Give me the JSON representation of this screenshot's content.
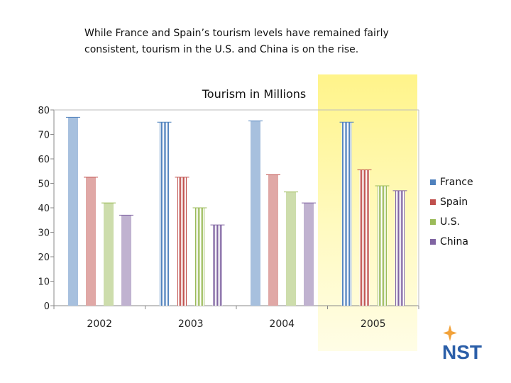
{
  "caption": "While France and Spain’s tourism levels have remained fairly consistent, tourism in the U.S. and China is on the rise.",
  "logo": {
    "text": "NST",
    "icon": "compass-star-icon",
    "color": "#2a5ea8",
    "accent": "#f2a23a"
  },
  "chart_data": {
    "type": "bar",
    "title": "Tourism in Millions",
    "xlabel": "",
    "ylabel": "",
    "categories": [
      "2002",
      "2003",
      "2004",
      "2005"
    ],
    "ylim": [
      0,
      80
    ],
    "yticks": [
      0,
      10,
      20,
      30,
      40,
      50,
      60,
      70,
      80
    ],
    "grid": false,
    "legend_position": "right",
    "highlight_category": "2005",
    "series": [
      {
        "name": "France",
        "color": "#4f81bd",
        "values": [
          77,
          75,
          75.5,
          75
        ]
      },
      {
        "name": "Spain",
        "color": "#c0504d",
        "values": [
          52.5,
          52.5,
          53.5,
          55.5
        ]
      },
      {
        "name": "U.S.",
        "color": "#9bbb59",
        "values": [
          42,
          40,
          46.5,
          49
        ]
      },
      {
        "name": "China",
        "color": "#8064a2",
        "values": [
          37,
          33,
          42,
          47
        ]
      }
    ]
  }
}
